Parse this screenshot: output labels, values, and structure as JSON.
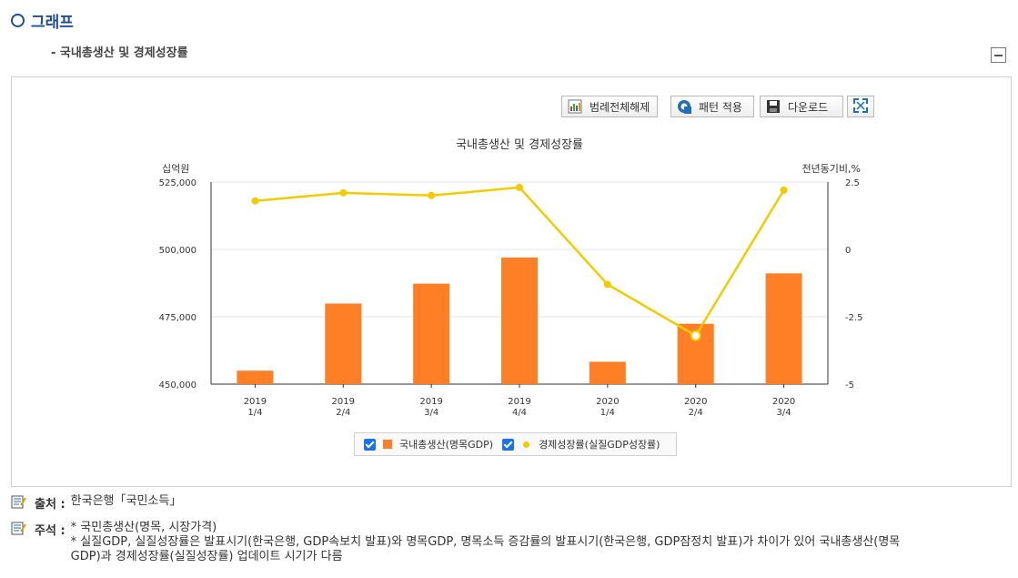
{
  "section": {
    "title": "그래프"
  },
  "subtitle": "- 국내총생산 및 경제성장률",
  "toolbar": {
    "legend_toggle": "범례전체해제",
    "pattern": "패턴 적용",
    "download": "다운로드"
  },
  "chart_data": {
    "type": "bar",
    "title": "국내총생산 및 경제성장률",
    "categories": [
      [
        "2019",
        "1/4"
      ],
      [
        "2019",
        "2/4"
      ],
      [
        "2019",
        "3/4"
      ],
      [
        "2019",
        "4/4"
      ],
      [
        "2020",
        "1/4"
      ],
      [
        "2020",
        "2/4"
      ],
      [
        "2020",
        "3/4"
      ]
    ],
    "y_left": {
      "label": "십억원",
      "ticks": [
        "525,000",
        "500,000",
        "475,000",
        "450,000"
      ],
      "range": [
        450000,
        525000
      ]
    },
    "y_right": {
      "label": "전년동기비,%",
      "ticks": [
        "2.5",
        "0",
        "-2.5",
        "-5"
      ],
      "range": [
        -5,
        2.5
      ]
    },
    "series": [
      {
        "name": "국내총생산(명목GDP)",
        "type": "bar",
        "axis": "left",
        "color": "#ff7f27",
        "values": [
          455000,
          479900,
          487300,
          497000,
          458300,
          472400,
          491100
        ]
      },
      {
        "name": "경제성장률(실질GDP성장률)",
        "type": "line",
        "axis": "right",
        "color": "#f2cc00",
        "values": [
          1.8,
          2.1,
          2.0,
          2.3,
          -1.3,
          -3.2,
          2.2
        ]
      }
    ],
    "grid": true,
    "legend": "bottom"
  },
  "notes": {
    "source_key": "출처 :",
    "source": "한국은행「국민소득」",
    "remark_key": "주석 :",
    "remark_line1": "* 국민총생산(명목, 시장가격)",
    "remark_line2": "* 실질GDP, 실질성장률은 발표시기(한국은행, GDP속보치 발표)와 명목GDP, 명목소득 증감률의 발표시기(한국은행, GDP잠정치 발표)가 차이가 있어 국내총생산(명목",
    "remark_line3": "GDP)과 경제성장률(실질성장률) 업데이트 시기가 다름"
  }
}
